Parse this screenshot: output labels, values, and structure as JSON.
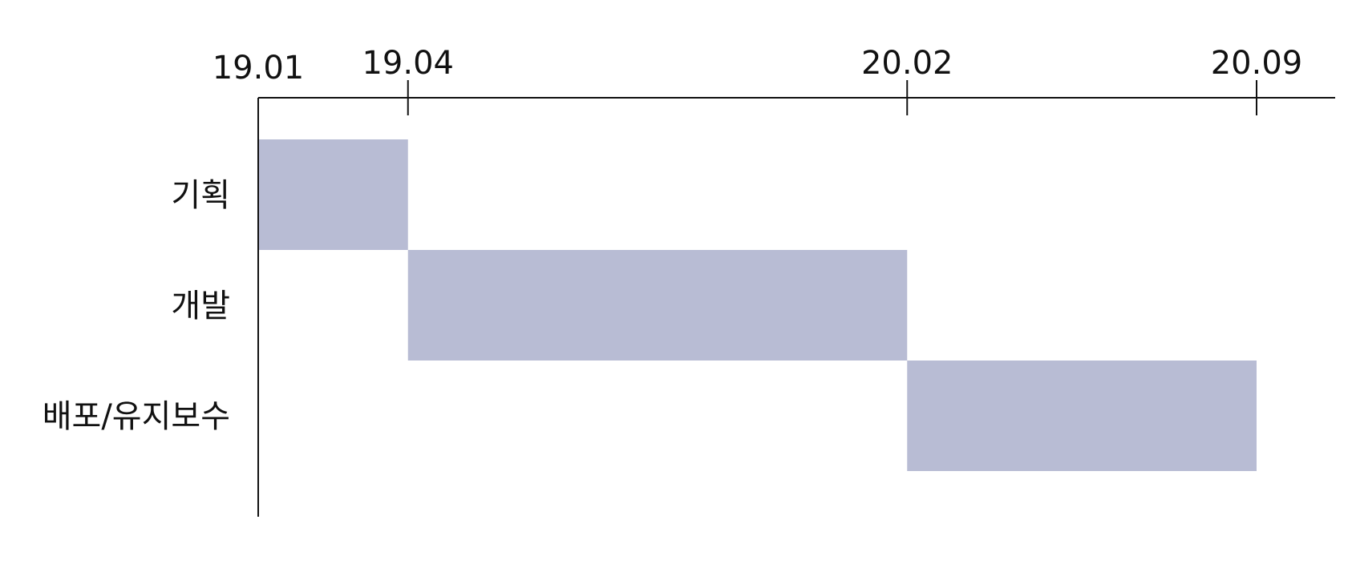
{
  "chart_data": {
    "type": "gantt",
    "ticks": [
      "19.01",
      "19.04",
      "20.02",
      "20.09"
    ],
    "tasks": [
      {
        "label": "기획",
        "start": "19.01",
        "end": "19.04"
      },
      {
        "label": "개발",
        "start": "19.04",
        "end": "20.02"
      },
      {
        "label": "배포/유지보수",
        "start": "20.02",
        "end": "20.09"
      }
    ],
    "bar_color": "#b8bcd4",
    "axis_color": "#111111"
  }
}
